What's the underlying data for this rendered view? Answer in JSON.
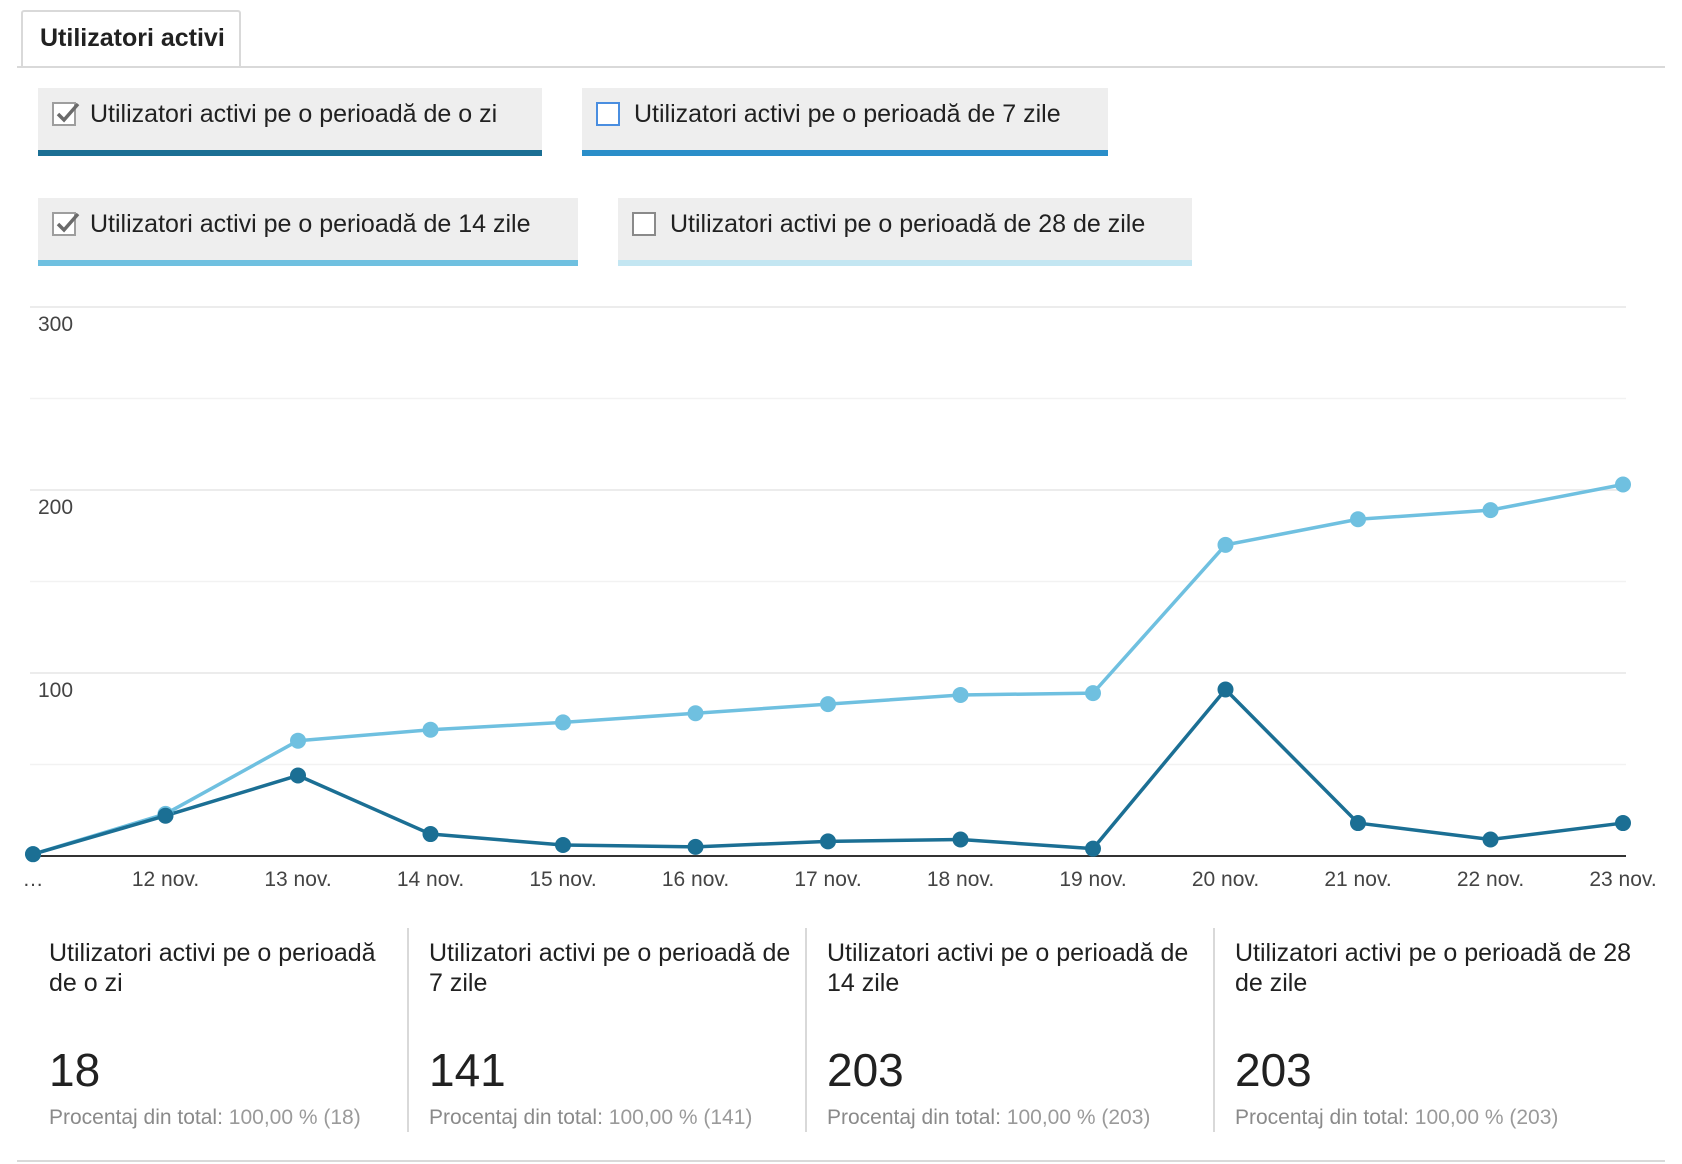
{
  "tab": {
    "label": "Utilizatori activi"
  },
  "toggles": [
    {
      "label": "Utilizatori activi pe o perioadă de o zi",
      "checked": true,
      "color": "#1b6f94"
    },
    {
      "label": "Utilizatori activi pe o perioadă de 7 zile",
      "checked": false,
      "color": "#2a8ec9"
    },
    {
      "label": "Utilizatori activi pe o perioadă de 14 zile",
      "checked": true,
      "color": "#6fc0e0"
    },
    {
      "label": "Utilizatori activi pe o perioadă de 28 de zile",
      "checked": false,
      "color": "#c3e6f2"
    }
  ],
  "chart_data": {
    "type": "line",
    "categories": [
      "…",
      "12 nov.",
      "13 nov.",
      "14 nov.",
      "15 nov.",
      "16 nov.",
      "17 nov.",
      "18 nov.",
      "19 nov.",
      "20 nov.",
      "21 nov.",
      "22 nov.",
      "23 nov."
    ],
    "ylim": [
      0,
      300
    ],
    "yticks": [
      100,
      200,
      300
    ],
    "ytick_labels": [
      "100",
      "200",
      "300"
    ],
    "grid": true,
    "series": [
      {
        "name": "Utilizatori activi pe o perioadă de o zi",
        "color": "#1b6f94",
        "values": [
          1,
          22,
          44,
          12,
          6,
          5,
          8,
          9,
          4,
          91,
          18,
          9,
          18
        ]
      },
      {
        "name": "Utilizatori activi pe o perioadă de 14 zile",
        "color": "#6fc0e0",
        "values": [
          1,
          23,
          63,
          69,
          73,
          78,
          83,
          88,
          89,
          170,
          184,
          189,
          203
        ]
      }
    ]
  },
  "stats": [
    {
      "title": "Utilizatori activi pe o perioadă de o zi",
      "value": "18",
      "pct_label": "Procentaj din total:",
      "pct_value": "100,00 % (18)"
    },
    {
      "title": "Utilizatori activi pe o perioadă de 7 zile",
      "value": "141",
      "pct_label": "Procentaj din total:",
      "pct_value": "100,00 % (141)"
    },
    {
      "title": "Utilizatori activi pe o perioadă de 14 zile",
      "value": "203",
      "pct_label": "Procentaj din total:",
      "pct_value": "100,00 % (203)"
    },
    {
      "title": "Utilizatori activi pe o perioadă de 28 de zile",
      "value": "203",
      "pct_label": "Procentaj din total:",
      "pct_value": "100,00 % (203)"
    }
  ]
}
